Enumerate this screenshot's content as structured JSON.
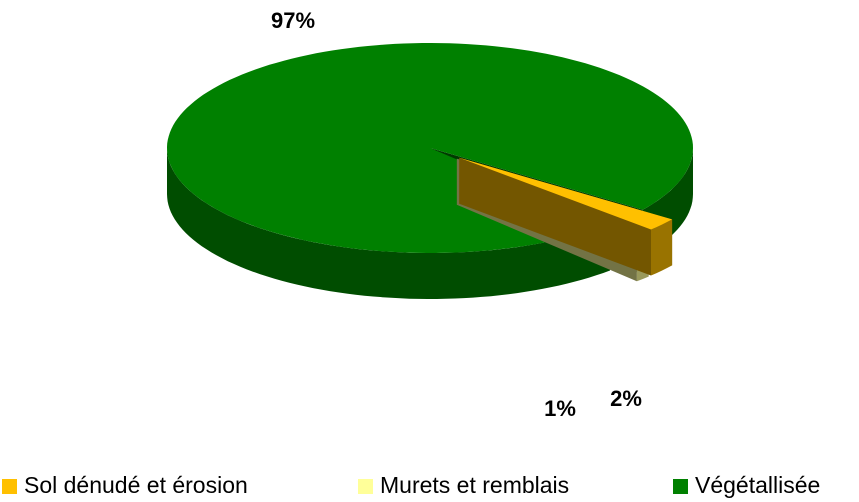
{
  "chart_data": {
    "type": "pie3d",
    "categories": [
      "Sol dénudé et érosion",
      "Murets et remblais",
      "Végétallisée"
    ],
    "values": [
      2,
      1,
      97
    ],
    "value_labels": [
      "2%",
      "1%",
      "97%"
    ],
    "colors": [
      "#ffc000",
      "#ffff99",
      "#008000"
    ]
  }
}
